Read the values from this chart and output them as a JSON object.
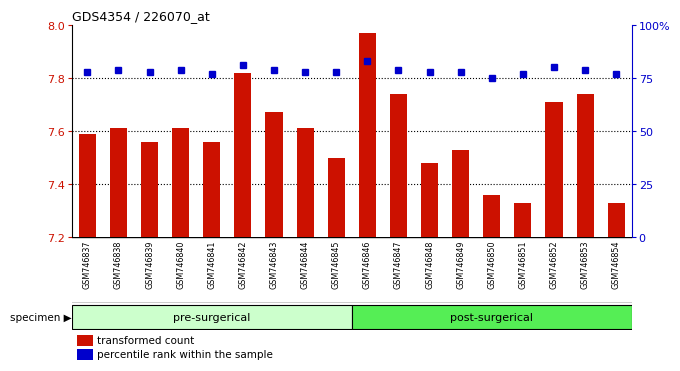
{
  "title": "GDS4354 / 226070_at",
  "samples": [
    "GSM746837",
    "GSM746838",
    "GSM746839",
    "GSM746840",
    "GSM746841",
    "GSM746842",
    "GSM746843",
    "GSM746844",
    "GSM746845",
    "GSM746846",
    "GSM746847",
    "GSM746848",
    "GSM746849",
    "GSM746850",
    "GSM746851",
    "GSM746852",
    "GSM746853",
    "GSM746854"
  ],
  "bar_values": [
    7.59,
    7.61,
    7.56,
    7.61,
    7.56,
    7.82,
    7.67,
    7.61,
    7.5,
    7.97,
    7.74,
    7.48,
    7.53,
    7.36,
    7.33,
    7.71,
    7.74,
    7.33
  ],
  "percentile_values": [
    78,
    79,
    78,
    79,
    77,
    81,
    79,
    78,
    78,
    83,
    79,
    78,
    78,
    75,
    77,
    80,
    79,
    77
  ],
  "bar_color": "#cc1100",
  "percentile_color": "#0000cc",
  "ylim_left": [
    7.2,
    8.0
  ],
  "ylim_right": [
    0,
    100
  ],
  "yticks_left": [
    7.2,
    7.4,
    7.6,
    7.8,
    8.0
  ],
  "yticks_right": [
    0,
    25,
    50,
    75,
    100
  ],
  "grid_values": [
    7.4,
    7.6,
    7.8
  ],
  "pre_surgical_count": 9,
  "post_surgical_count": 9,
  "pre_label": "pre-surgerical",
  "post_label": "post-surgerical",
  "specimen_label": "specimen",
  "legend_bar_label": "transformed count",
  "legend_dot_label": "percentile rank within the sample",
  "pre_color": "#ccffcc",
  "post_color": "#55ee55",
  "bar_bottom": 7.2,
  "xtick_bg": "#c8c8c8"
}
